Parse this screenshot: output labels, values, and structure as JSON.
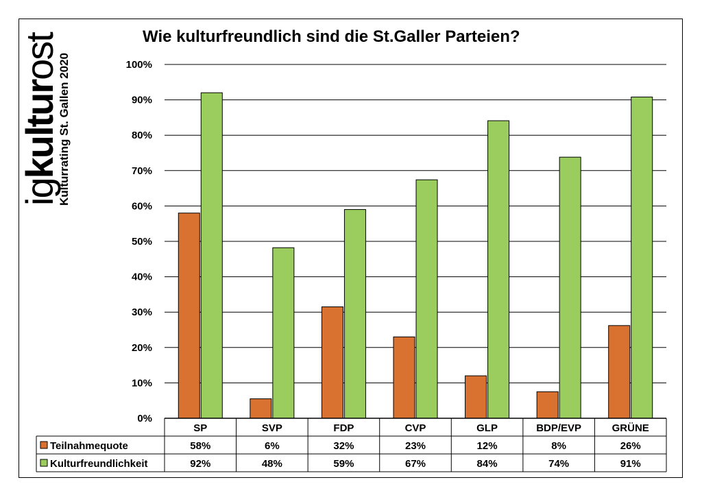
{
  "brand": {
    "logo_thin_1": "ig",
    "logo_bold": "kultur",
    "logo_thin_2": "ost",
    "subtitle": "Kulturrating St. Gallen 2020"
  },
  "chart_data": {
    "type": "bar",
    "title": "Wie kulturfreundlich sind die St.Galler Parteien?",
    "categories": [
      "SP",
      "SVP",
      "FDP",
      "CVP",
      "GLP",
      "BDP/EVP",
      "GRÜNE"
    ],
    "series": [
      {
        "name": "Teilnahmequote",
        "color": "#D97131",
        "values": [
          58,
          5.5,
          31.5,
          23,
          12,
          7.5,
          26.2
        ],
        "labels": [
          "58%",
          "6%",
          "32%",
          "23%",
          "12%",
          "8%",
          "26%"
        ]
      },
      {
        "name": "Kulturfreundlichkeit",
        "color": "#9ACD5E",
        "values": [
          92,
          48.2,
          59,
          67.4,
          84.1,
          73.8,
          90.8
        ],
        "labels": [
          "92%",
          "48%",
          "59%",
          "67%",
          "84%",
          "74%",
          "91%"
        ]
      }
    ],
    "yticks": [
      "0%",
      "10%",
      "20%",
      "30%",
      "40%",
      "50%",
      "60%",
      "70%",
      "80%",
      "90%",
      "100%"
    ],
    "ylim": [
      0,
      100
    ],
    "grid": true,
    "legend": "data-table"
  }
}
